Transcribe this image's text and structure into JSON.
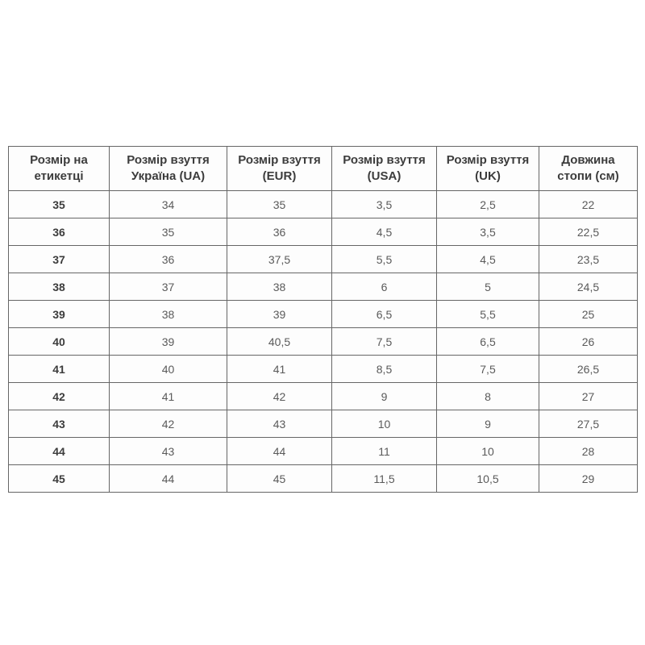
{
  "page": {
    "background_color": "#ffffff",
    "border_color": "#666666",
    "header_text_color": "#3c3c3c",
    "cell_text_color": "#5a5a5a"
  },
  "table": {
    "columns": [
      "Розмір на етикетці",
      "Розмір взуття Україна (UA)",
      "Розмір взуття (EUR)",
      "Розмір взуття (USA)",
      "Розмір взуття (UK)",
      "Довжина стопи (см)"
    ],
    "rows": [
      [
        "35",
        "34",
        "35",
        "3,5",
        "2,5",
        "22"
      ],
      [
        "36",
        "35",
        "36",
        "4,5",
        "3,5",
        "22,5"
      ],
      [
        "37",
        "36",
        "37,5",
        "5,5",
        "4,5",
        "23,5"
      ],
      [
        "38",
        "37",
        "38",
        "6",
        "5",
        "24,5"
      ],
      [
        "39",
        "38",
        "39",
        "6,5",
        "5,5",
        "25"
      ],
      [
        "40",
        "39",
        "40,5",
        "7,5",
        "6,5",
        "26"
      ],
      [
        "41",
        "40",
        "41",
        "8,5",
        "7,5",
        "26,5"
      ],
      [
        "42",
        "41",
        "42",
        "9",
        "8",
        "27"
      ],
      [
        "43",
        "42",
        "43",
        "10",
        "9",
        "27,5"
      ],
      [
        "44",
        "43",
        "44",
        "11",
        "10",
        "28"
      ],
      [
        "45",
        "44",
        "45",
        "11,5",
        "10,5",
        "29"
      ]
    ]
  },
  "chart_data": {
    "type": "table",
    "title": "",
    "columns": [
      "Розмір на етикетці",
      "Розмір взуття Україна (UA)",
      "Розмір взуття (EUR)",
      "Розмір взуття (USA)",
      "Розмір взуття (UK)",
      "Довжина стопи (см)"
    ],
    "rows": [
      [
        "35",
        "34",
        "35",
        "3,5",
        "2,5",
        "22"
      ],
      [
        "36",
        "35",
        "36",
        "4,5",
        "3,5",
        "22,5"
      ],
      [
        "37",
        "36",
        "37,5",
        "5,5",
        "4,5",
        "23,5"
      ],
      [
        "38",
        "37",
        "38",
        "6",
        "5",
        "24,5"
      ],
      [
        "39",
        "38",
        "39",
        "6,5",
        "5,5",
        "25"
      ],
      [
        "40",
        "39",
        "40,5",
        "7,5",
        "6,5",
        "26"
      ],
      [
        "41",
        "40",
        "41",
        "8,5",
        "7,5",
        "26,5"
      ],
      [
        "42",
        "41",
        "42",
        "9",
        "8",
        "27"
      ],
      [
        "43",
        "42",
        "43",
        "10",
        "9",
        "27,5"
      ],
      [
        "44",
        "43",
        "44",
        "11",
        "10",
        "28"
      ],
      [
        "45",
        "44",
        "45",
        "11,5",
        "10,5",
        "29"
      ]
    ]
  }
}
